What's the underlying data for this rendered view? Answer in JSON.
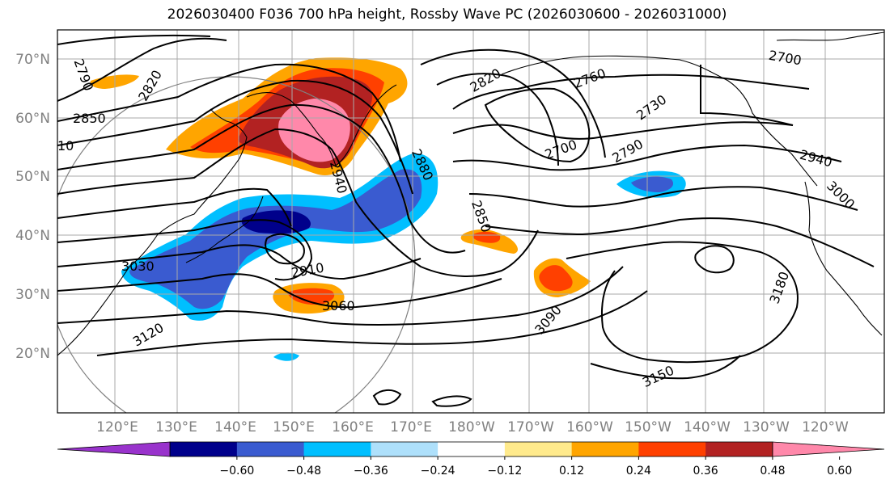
{
  "title": "2026030400 F036 700 hPa height, Rossby Wave PC (2026030600 - 2026031000)",
  "colors": {
    "neg_060": "#9933cc",
    "neg_048": "#00008b",
    "neg_036": "#3a5bd0",
    "neg_024": "#00bfff",
    "neg_012": "#aee0fb",
    "zero": "#ffffff",
    "pos_012": "#ffea8c",
    "pos_024": "#ffa500",
    "pos_036": "#ff4000",
    "pos_048": "#b22222",
    "pos_060": "#ff88aa",
    "contour": "#000000",
    "grid": "#a9a9a9",
    "coast": "#000000"
  },
  "map": {
    "lat_labels": [
      "70°N",
      "60°N",
      "50°N",
      "40°N",
      "30°N",
      "20°N"
    ],
    "lon_labels": [
      "120°E",
      "130°E",
      "140°E",
      "150°E",
      "160°E",
      "170°E",
      "180°W",
      "170°W",
      "160°W",
      "150°W",
      "140°W",
      "130°W",
      "120°W"
    ],
    "contour_labels": [
      "2790",
      "2820",
      "2850",
      "10",
      "2820",
      "2760",
      "2700",
      "2730",
      "2700",
      "2790",
      "2940",
      "3000",
      "2880",
      "2940",
      "2850",
      "2910",
      "3030",
      "3060",
      "3120",
      "3090",
      "3180",
      "3150"
    ]
  },
  "colorbar": {
    "ticks": [
      "−0.60",
      "−0.48",
      "−0.36",
      "−0.24",
      "−0.12",
      "0.12",
      "0.24",
      "0.36",
      "0.48",
      "0.60"
    ],
    "bin_colors": [
      "#9933cc",
      "#00008b",
      "#3a5bd0",
      "#00bfff",
      "#aee0fb",
      "#ffffff",
      "#ffea8c",
      "#ffa500",
      "#ff4000",
      "#b22222",
      "#ff88aa"
    ]
  }
}
